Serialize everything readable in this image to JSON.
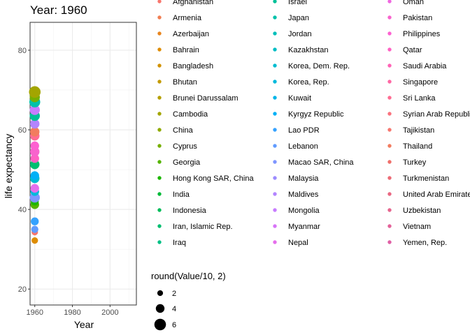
{
  "chart_data": {
    "type": "scatter",
    "title": "Year: 1960",
    "xlabel": "Year",
    "ylabel": "life expectancy",
    "xlim": [
      1957.5,
      2014
    ],
    "ylim": [
      16,
      87
    ],
    "xticks": [
      1960,
      1980,
      2000
    ],
    "yticks": [
      20,
      40,
      60,
      80
    ],
    "grid": true,
    "x_value": 1960,
    "countries": [
      "Afghanistan",
      "Armenia",
      "Azerbaijan",
      "Bahrain",
      "Bangladesh",
      "Bhutan",
      "Brunei Darussalam",
      "Cambodia",
      "China",
      "Cyprus",
      "Georgia",
      "Hong Kong SAR, China",
      "India",
      "Indonesia",
      "Iran, Islamic Rep.",
      "Iraq",
      "Israel",
      "Japan",
      "Jordan",
      "Kazakhstan",
      "Korea, Dem. Rep.",
      "Korea, Rep.",
      "Kuwait",
      "Kyrgyz Republic",
      "Lao PDR",
      "Lebanon",
      "Macao SAR, China",
      "Malaysia",
      "Maldives",
      "Mongolia",
      "Myanmar",
      "Nepal",
      "Oman",
      "Pakistan",
      "Philippines",
      "Qatar",
      "Saudi Arabia",
      "Singapore",
      "Sri Lanka",
      "Syrian Arab Republic",
      "Tajikistan",
      "Thailand",
      "Turkey",
      "Turkmenistan",
      "United Arab Emirates",
      "Uzbekistan",
      "Vietnam",
      "Yemen, Rep."
    ],
    "colors": [
      "#F8766D",
      "#F17D51",
      "#E8851D",
      "#DE8C00",
      "#D29200",
      "#C49A00",
      "#B59F00",
      "#A3A500",
      "#8FAA00",
      "#76AF00",
      "#55B400",
      "#1CB700",
      "#00BA38",
      "#00BC59",
      "#00BE70",
      "#00C085",
      "#00C098",
      "#00C1AA",
      "#00BFBA",
      "#00BDC4",
      "#00BCD0",
      "#00B9DC",
      "#00B5E9",
      "#00B0F6",
      "#35A2FF",
      "#619CFF",
      "#7F96FF",
      "#9C8CFF",
      "#B385FF",
      "#C77CFF",
      "#D774F7",
      "#E56EEC",
      "#F066E0",
      "#F863CD",
      "#FD61D1",
      "#FF61C3",
      "#FF63B6",
      "#FF67A4",
      "#FF6C92",
      "#FA727E",
      "#F6776F",
      "#F27C5F",
      "#EF6F6A",
      "#EC6B76",
      "#E96882",
      "#E6658E",
      "#E36299",
      "#E05FA5"
    ],
    "legend_colors": [
      "#F8766D",
      "#F17D51",
      "#E8851D",
      "#DE8C00",
      "#D29200",
      "#C49A00",
      "#B59F00",
      "#A3A500",
      "#8FAA00",
      "#76AF00",
      "#55B400",
      "#1CB700",
      "#00BA38",
      "#00BC59",
      "#00BE70",
      "#00C085",
      "#00C098",
      "#00C1AA",
      "#00BFBA",
      "#00BDC4",
      "#00BCD0",
      "#00B9DC",
      "#00B5E9",
      "#00B0F6",
      "#35A2FF",
      "#619CFF",
      "#7F96FF",
      "#9C8CFF",
      "#B385FF",
      "#C77CFF",
      "#D774F7",
      "#E56EEC",
      "#F066E0",
      "#F863CD",
      "#FD61D1",
      "#FF61C3",
      "#FF63B6",
      "#FF67A4",
      "#FF6C92",
      "#FA727E",
      "#F6776F",
      "#F27C5F",
      "#EF6F6A",
      "#EC6B76",
      "#E96882",
      "#E6658E",
      "#E36299",
      "#E05FA5"
    ],
    "points": [
      {
        "color": "#DE8C00",
        "y": 32.2,
        "size": 2.5
      },
      {
        "color": "#F8766D",
        "y": 34.3,
        "size": 2.5
      },
      {
        "color": "#619CFF",
        "y": 35.0,
        "size": 3.0
      },
      {
        "color": "#35A2FF",
        "y": 37.0,
        "size": 3.5
      },
      {
        "color": "#55B400",
        "y": 41.2,
        "size": 4.0
      },
      {
        "color": "#1CB700",
        "y": 42.0,
        "size": 3.5
      },
      {
        "color": "#7F96FF",
        "y": 43.0,
        "size": 5.0
      },
      {
        "color": "#00B9DC",
        "y": 44.5,
        "size": 4.0
      },
      {
        "color": "#E56EEC",
        "y": 45.3,
        "size": 4.0
      },
      {
        "color": "#00BCD0",
        "y": 47.8,
        "size": 4.5
      },
      {
        "color": "#00B0F6",
        "y": 48.5,
        "size": 4.0
      },
      {
        "color": "#00BE70",
        "y": 51.3,
        "size": 4.5
      },
      {
        "color": "#FF61C3",
        "y": 52.8,
        "size": 4.0
      },
      {
        "color": "#F863CD",
        "y": 54.5,
        "size": 4.5
      },
      {
        "color": "#FD61D1",
        "y": 56.0,
        "size": 4.0
      },
      {
        "color": "#FF6C92",
        "y": 58.5,
        "size": 4.5
      },
      {
        "color": "#F27C5F",
        "y": 59.5,
        "size": 4.5
      },
      {
        "color": "#B385FF",
        "y": 61.5,
        "size": 4.5
      },
      {
        "color": "#00C098",
        "y": 63.5,
        "size": 5.0
      },
      {
        "color": "#C77CFF",
        "y": 65.0,
        "size": 5.0
      },
      {
        "color": "#00C1AA",
        "y": 67.0,
        "size": 5.5
      },
      {
        "color": "#76AF00",
        "y": 68.2,
        "size": 5.0
      },
      {
        "color": "#A3A500",
        "y": 69.5,
        "size": 6.0
      }
    ],
    "size_legend": {
      "title": "round(Value/10, 2)",
      "entries": [
        {
          "label": "2",
          "value": 2
        },
        {
          "label": "4",
          "value": 4
        },
        {
          "label": "6",
          "value": 6
        }
      ]
    }
  }
}
